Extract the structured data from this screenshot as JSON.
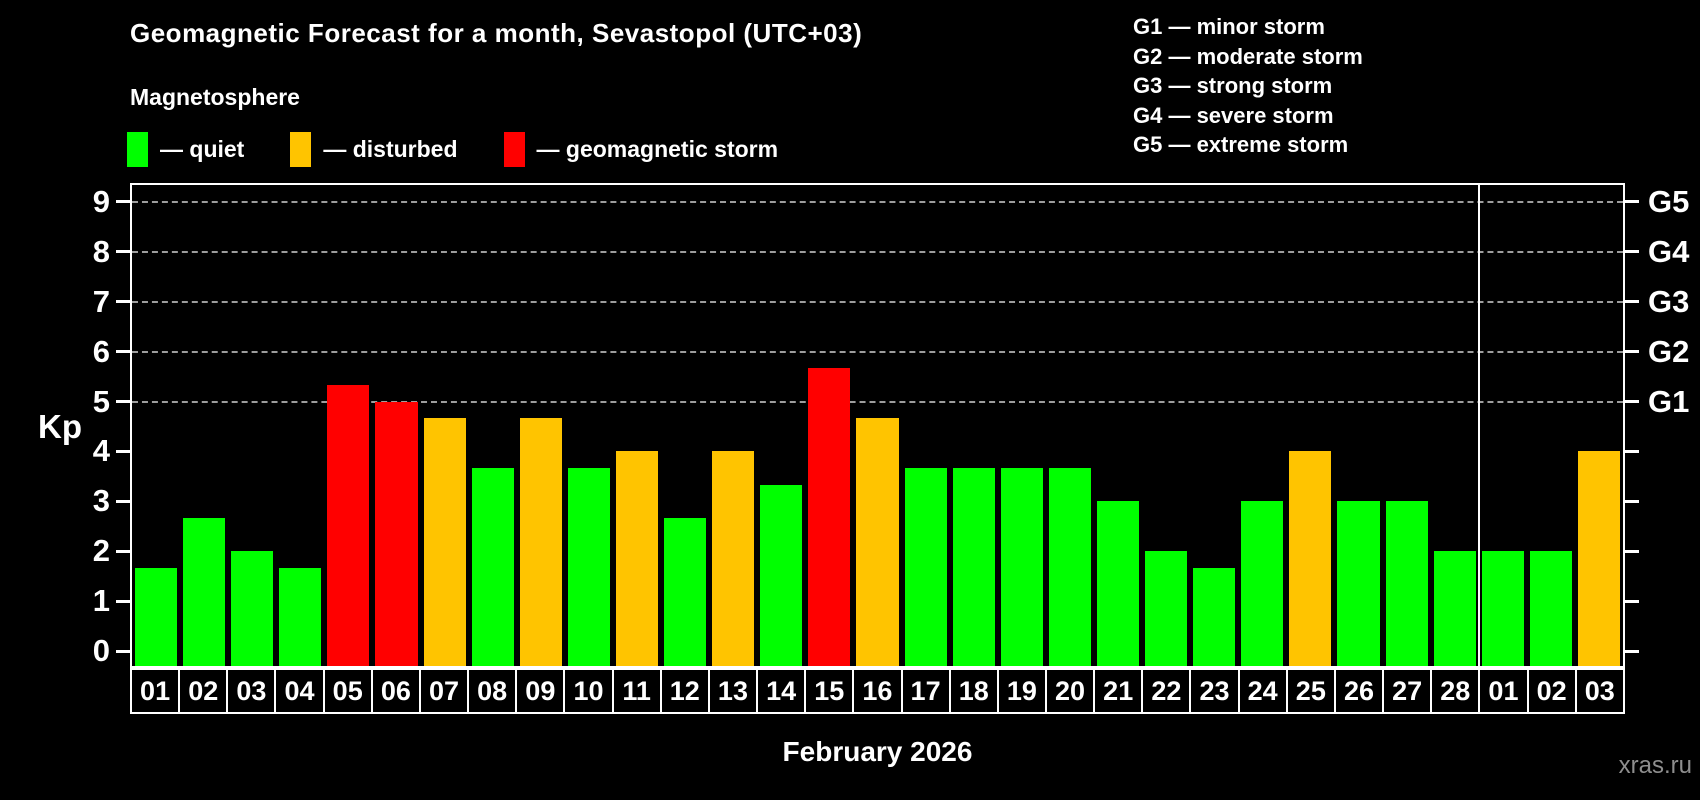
{
  "title": "Geomagnetic Forecast for a month, Sevastopol (UTC+03)",
  "subtitle": "Magnetosphere",
  "legend": [
    {
      "key": "quiet",
      "label": "— quiet",
      "color": "#00ff00"
    },
    {
      "key": "disturbed",
      "label": "— disturbed",
      "color": "#ffc400"
    },
    {
      "key": "storm",
      "label": "— geomagnetic storm",
      "color": "#ff0000"
    }
  ],
  "g_scale_legend": [
    "G1 — minor storm",
    "G2 — moderate storm",
    "G3 — strong storm",
    "G4 — severe storm",
    "G5 — extreme storm"
  ],
  "month_label": "February 2026",
  "watermark": "xras.ru",
  "colors": {
    "quiet": "#00ff00",
    "disturbed": "#ffc400",
    "storm": "#ff0000",
    "background": "#000000",
    "axis": "#ffffff",
    "gridline": "#9d9d9d",
    "watermark": "#8e8e8e"
  },
  "chart_data": {
    "type": "bar",
    "title": "Geomagnetic Forecast for a month, Sevastopol (UTC+03)",
    "xlabel": "February 2026",
    "ylabel": "Kp",
    "ylim": [
      0,
      9.4
    ],
    "y_ticks": [
      0,
      1,
      2,
      3,
      4,
      5,
      6,
      7,
      8,
      9
    ],
    "dashed_gridlines_at": [
      5,
      6,
      7,
      8,
      9
    ],
    "right_axis_labels": {
      "5": "G1",
      "6": "G2",
      "7": "G3",
      "8": "G4",
      "9": "G5"
    },
    "legend_position": "top-left",
    "grid": "horizontal-dashed-5-to-9",
    "month_separator_after_index": 27,
    "categories": [
      "01",
      "02",
      "03",
      "04",
      "05",
      "06",
      "07",
      "08",
      "09",
      "10",
      "11",
      "12",
      "13",
      "14",
      "15",
      "16",
      "17",
      "18",
      "19",
      "20",
      "21",
      "22",
      "23",
      "24",
      "25",
      "26",
      "27",
      "28",
      "01",
      "02",
      "03"
    ],
    "values": [
      1.67,
      2.67,
      2.0,
      1.67,
      5.33,
      5.0,
      4.67,
      3.67,
      4.67,
      3.67,
      4.0,
      2.67,
      4.0,
      3.33,
      5.67,
      4.67,
      3.67,
      3.67,
      3.67,
      3.67,
      3.0,
      2.0,
      1.67,
      3.0,
      4.0,
      3.0,
      3.0,
      2.0,
      2.0,
      2.0,
      4.0
    ],
    "statuses": [
      "quiet",
      "quiet",
      "quiet",
      "quiet",
      "storm",
      "storm",
      "disturbed",
      "quiet",
      "disturbed",
      "quiet",
      "disturbed",
      "quiet",
      "disturbed",
      "quiet",
      "storm",
      "disturbed",
      "quiet",
      "quiet",
      "quiet",
      "quiet",
      "quiet",
      "quiet",
      "quiet",
      "quiet",
      "disturbed",
      "quiet",
      "quiet",
      "quiet",
      "quiet",
      "quiet",
      "disturbed"
    ]
  }
}
